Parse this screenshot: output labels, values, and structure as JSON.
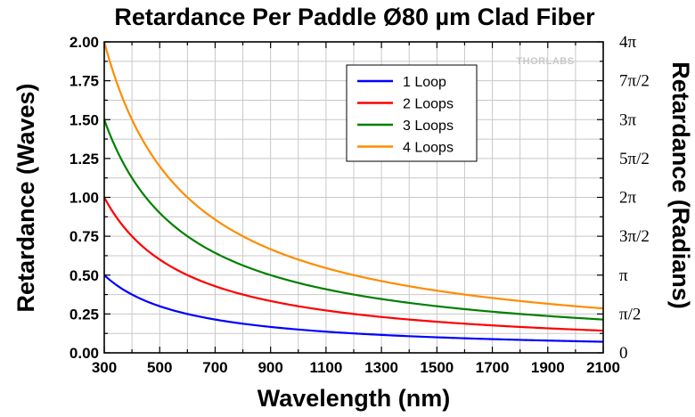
{
  "chart_data": {
    "type": "line",
    "title": "Retardance Per Paddle Ø80 µm Clad Fiber",
    "xlabel": "Wavelength (nm)",
    "ylabel": "Retardance (Waves)",
    "ylabel_right": "Retardance (Radians)",
    "xlim": [
      300,
      2100
    ],
    "ylim": [
      0,
      2
    ],
    "x_ticks": [
      300,
      500,
      700,
      900,
      1100,
      1300,
      1500,
      1700,
      1900,
      2100
    ],
    "y_ticks": [
      "0.00",
      "0.25",
      "0.50",
      "0.75",
      "1.00",
      "1.25",
      "1.50",
      "1.75",
      "2.00"
    ],
    "y_ticks_right": [
      "0",
      "π/2",
      "π",
      "3π/2",
      "2π",
      "5π/2",
      "3π",
      "7π/2",
      "4π"
    ],
    "grid": true,
    "legend_position": "top-center-right",
    "watermark": "THORLABS",
    "series": [
      {
        "name": "1 Loop",
        "color": "#0000ff",
        "x": [
          300,
          400,
          500,
          600,
          700,
          900,
          1100,
          1300,
          1500,
          1700,
          1900,
          2100
        ],
        "y": [
          0.5,
          0.375,
          0.3,
          0.25,
          0.214,
          0.167,
          0.136,
          0.115,
          0.1,
          0.088,
          0.079,
          0.071
        ]
      },
      {
        "name": "2 Loops",
        "color": "#ff0000",
        "x": [
          300,
          400,
          500,
          600,
          700,
          900,
          1100,
          1300,
          1500,
          1700,
          1900,
          2100
        ],
        "y": [
          1.0,
          0.75,
          0.6,
          0.5,
          0.429,
          0.333,
          0.273,
          0.231,
          0.2,
          0.176,
          0.158,
          0.143
        ]
      },
      {
        "name": "3 Loops",
        "color": "#008000",
        "x": [
          300,
          400,
          500,
          600,
          700,
          900,
          1100,
          1300,
          1500,
          1700,
          1900,
          2100
        ],
        "y": [
          1.5,
          1.125,
          0.9,
          0.75,
          0.643,
          0.5,
          0.409,
          0.346,
          0.3,
          0.265,
          0.237,
          0.214
        ]
      },
      {
        "name": "4 Loops",
        "color": "#ff8c00",
        "x": [
          300,
          400,
          500,
          600,
          700,
          900,
          1100,
          1300,
          1500,
          1700,
          1900,
          2100
        ],
        "y": [
          2.0,
          1.5,
          1.2,
          1.0,
          0.857,
          0.667,
          0.545,
          0.462,
          0.4,
          0.353,
          0.316,
          0.286
        ]
      }
    ]
  }
}
